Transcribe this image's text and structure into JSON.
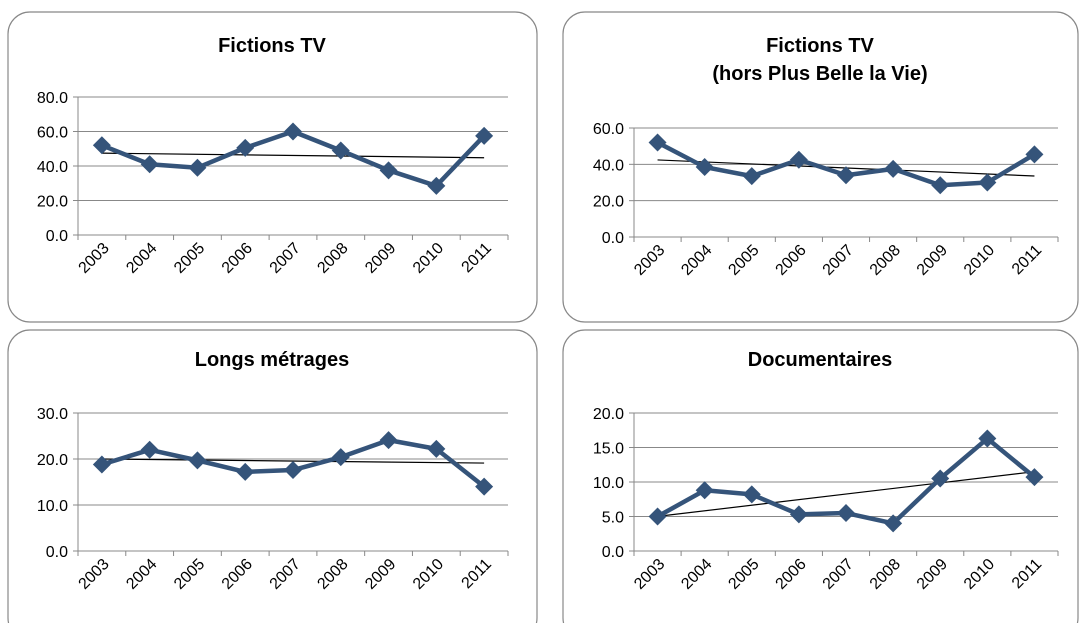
{
  "chart_data": [
    {
      "type": "line",
      "title": [
        "Fictions TV"
      ],
      "categories": [
        "2003",
        "2004",
        "2005",
        "2006",
        "2007",
        "2008",
        "2009",
        "2010",
        "2011"
      ],
      "values": [
        52,
        41,
        39,
        50.5,
        60,
        49,
        37.5,
        28.5,
        57.5
      ],
      "color": "#35547a",
      "ylim": [
        0,
        80
      ],
      "yticks": [
        {
          "value": 0,
          "label": "0.0"
        },
        {
          "value": 20,
          "label": "20.0"
        },
        {
          "value": 40,
          "label": "40.0"
        },
        {
          "value": 60,
          "label": "60.0"
        },
        {
          "value": 80,
          "label": "80.0"
        }
      ],
      "grid": true,
      "trendline": true
    },
    {
      "type": "line",
      "title": [
        "Fictions TV",
        "(hors Plus Belle la Vie)"
      ],
      "categories": [
        "2003",
        "2004",
        "2005",
        "2006",
        "2007",
        "2008",
        "2009",
        "2010",
        "2011"
      ],
      "values": [
        52,
        38.5,
        33.5,
        42.5,
        34,
        37.5,
        28.5,
        30,
        45.5
      ],
      "color": "#35547a",
      "ylim": [
        0,
        60
      ],
      "yticks": [
        {
          "value": 0,
          "label": "0.0"
        },
        {
          "value": 20,
          "label": "20.0"
        },
        {
          "value": 40,
          "label": "40.0"
        },
        {
          "value": 60,
          "label": "60.0"
        }
      ],
      "grid": true,
      "trendline": true
    },
    {
      "type": "line",
      "title": [
        "Longs métrages"
      ],
      "categories": [
        "2003",
        "2004",
        "2005",
        "2006",
        "2007",
        "2008",
        "2009",
        "2010",
        "2011"
      ],
      "values": [
        18.8,
        22,
        19.7,
        17.2,
        17.6,
        20.4,
        24.1,
        22.2,
        14
      ],
      "color": "#35547a",
      "ylim": [
        0,
        30
      ],
      "yticks": [
        {
          "value": 0,
          "label": "0.0"
        },
        {
          "value": 10,
          "label": "10.0"
        },
        {
          "value": 20,
          "label": "20.0"
        },
        {
          "value": 30,
          "label": "30.0"
        }
      ],
      "grid": true,
      "trendline": true
    },
    {
      "type": "line",
      "title": [
        "Documentaires"
      ],
      "categories": [
        "2003",
        "2004",
        "2005",
        "2006",
        "2007",
        "2008",
        "2009",
        "2010",
        "2011"
      ],
      "values": [
        5,
        8.8,
        8.2,
        5.3,
        5.5,
        4,
        10.5,
        16.3,
        10.7
      ],
      "color": "#35547a",
      "ylim": [
        0,
        20
      ],
      "yticks": [
        {
          "value": 0,
          "label": "0.0"
        },
        {
          "value": 5,
          "label": "5.0"
        },
        {
          "value": 10,
          "label": "10.0"
        },
        {
          "value": 15,
          "label": "15.0"
        },
        {
          "value": 20,
          "label": "20.0"
        }
      ],
      "grid": true,
      "trendline": true
    }
  ]
}
